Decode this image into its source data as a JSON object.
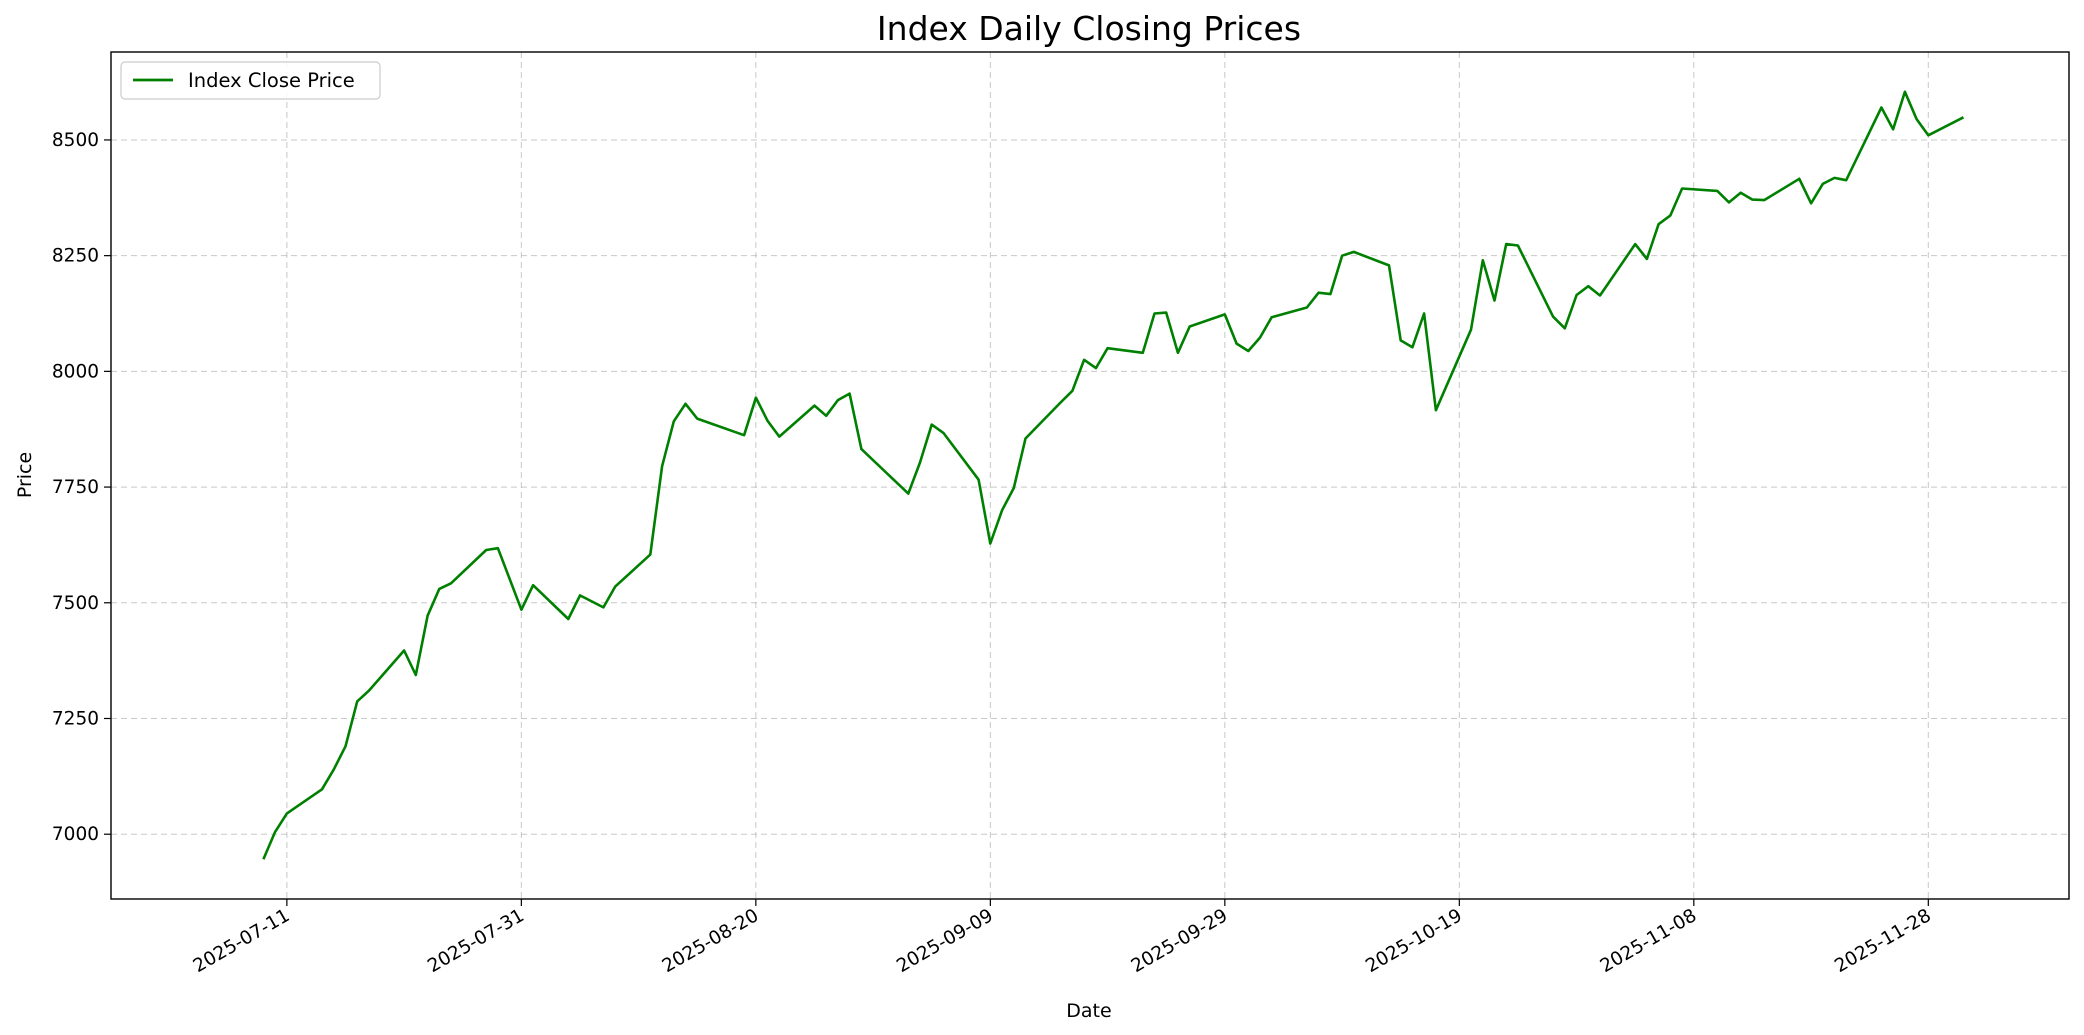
{
  "chart_data": {
    "type": "line",
    "title": "Index Daily Closing Prices",
    "xlabel": "Date",
    "ylabel": "Price",
    "grid": true,
    "legend_position": "top-left",
    "line_color": "#008000",
    "xlim": [
      "2025-06-26",
      "2025-12-10"
    ],
    "ylim": [
      6860,
      8690
    ],
    "x_ticks": [
      "2025-07-11",
      "2025-07-31",
      "2025-08-20",
      "2025-09-09",
      "2025-09-29",
      "2025-10-19",
      "2025-11-08",
      "2025-11-28"
    ],
    "y_ticks": [
      7000,
      7250,
      7500,
      7750,
      8000,
      8250,
      8500
    ],
    "series": [
      {
        "name": "Index Close Price",
        "points": [
          [
            "2025-07-09",
            6946
          ],
          [
            "2025-07-10",
            7005
          ],
          [
            "2025-07-11",
            7045
          ],
          [
            "2025-07-14",
            7097
          ],
          [
            "2025-07-15",
            7140
          ],
          [
            "2025-07-16",
            7190
          ],
          [
            "2025-07-17",
            7287
          ],
          [
            "2025-07-18",
            7310
          ],
          [
            "2025-07-21",
            7397
          ],
          [
            "2025-07-22",
            7344
          ],
          [
            "2025-07-23",
            7472
          ],
          [
            "2025-07-24",
            7530
          ],
          [
            "2025-07-25",
            7542
          ],
          [
            "2025-07-28",
            7614
          ],
          [
            "2025-07-29",
            7618
          ],
          [
            "2025-07-31",
            7485
          ],
          [
            "2025-08-01",
            7538
          ],
          [
            "2025-08-04",
            7465
          ],
          [
            "2025-08-05",
            7516
          ],
          [
            "2025-08-07",
            7490
          ],
          [
            "2025-08-08",
            7535
          ],
          [
            "2025-08-11",
            7604
          ],
          [
            "2025-08-12",
            7795
          ],
          [
            "2025-08-13",
            7892
          ],
          [
            "2025-08-14",
            7930
          ],
          [
            "2025-08-15",
            7898
          ],
          [
            "2025-08-19",
            7862
          ],
          [
            "2025-08-20",
            7943
          ],
          [
            "2025-08-21",
            7893
          ],
          [
            "2025-08-22",
            7859
          ],
          [
            "2025-08-25",
            7926
          ],
          [
            "2025-08-26",
            7904
          ],
          [
            "2025-08-27",
            7938
          ],
          [
            "2025-08-28",
            7952
          ],
          [
            "2025-08-29",
            7832
          ],
          [
            "2025-09-02",
            7736
          ],
          [
            "2025-09-03",
            7803
          ],
          [
            "2025-09-04",
            7885
          ],
          [
            "2025-09-05",
            7867
          ],
          [
            "2025-09-08",
            7766
          ],
          [
            "2025-09-09",
            7628
          ],
          [
            "2025-09-10",
            7700
          ],
          [
            "2025-09-11",
            7748
          ],
          [
            "2025-09-12",
            7855
          ],
          [
            "2025-09-15",
            7933
          ],
          [
            "2025-09-16",
            7958
          ],
          [
            "2025-09-17",
            8025
          ],
          [
            "2025-09-18",
            8007
          ],
          [
            "2025-09-19",
            8050
          ],
          [
            "2025-09-22",
            8040
          ],
          [
            "2025-09-23",
            8125
          ],
          [
            "2025-09-24",
            8127
          ],
          [
            "2025-09-25",
            8040
          ],
          [
            "2025-09-26",
            8097
          ],
          [
            "2025-09-29",
            8123
          ],
          [
            "2025-09-30",
            8060
          ],
          [
            "2025-10-01",
            8044
          ],
          [
            "2025-10-02",
            8073
          ],
          [
            "2025-10-03",
            8117
          ],
          [
            "2025-10-06",
            8138
          ],
          [
            "2025-10-07",
            8170
          ],
          [
            "2025-10-08",
            8167
          ],
          [
            "2025-10-09",
            8250
          ],
          [
            "2025-10-10",
            8258
          ],
          [
            "2025-10-13",
            8229
          ],
          [
            "2025-10-14",
            8067
          ],
          [
            "2025-10-15",
            8052
          ],
          [
            "2025-10-16",
            8125
          ],
          [
            "2025-10-17",
            7916
          ],
          [
            "2025-10-20",
            8090
          ],
          [
            "2025-10-21",
            8240
          ],
          [
            "2025-10-22",
            8153
          ],
          [
            "2025-10-23",
            8275
          ],
          [
            "2025-10-24",
            8272
          ],
          [
            "2025-10-27",
            8118
          ],
          [
            "2025-10-28",
            8093
          ],
          [
            "2025-10-29",
            8165
          ],
          [
            "2025-10-30",
            8184
          ],
          [
            "2025-10-31",
            8164
          ],
          [
            "2025-11-03",
            8275
          ],
          [
            "2025-11-04",
            8243
          ],
          [
            "2025-11-05",
            8318
          ],
          [
            "2025-11-06",
            8337
          ],
          [
            "2025-11-07",
            8395
          ],
          [
            "2025-11-10",
            8390
          ],
          [
            "2025-11-11",
            8365
          ],
          [
            "2025-11-12",
            8386
          ],
          [
            "2025-11-13",
            8371
          ],
          [
            "2025-11-14",
            8370
          ],
          [
            "2025-11-17",
            8416
          ],
          [
            "2025-11-18",
            8363
          ],
          [
            "2025-11-19",
            8405
          ],
          [
            "2025-11-20",
            8418
          ],
          [
            "2025-11-21",
            8413
          ],
          [
            "2025-11-24",
            8570
          ],
          [
            "2025-11-25",
            8523
          ],
          [
            "2025-11-26",
            8604
          ],
          [
            "2025-11-27",
            8545
          ],
          [
            "2025-11-28",
            8510
          ],
          [
            "2025-12-01",
            8549
          ]
        ]
      }
    ]
  }
}
